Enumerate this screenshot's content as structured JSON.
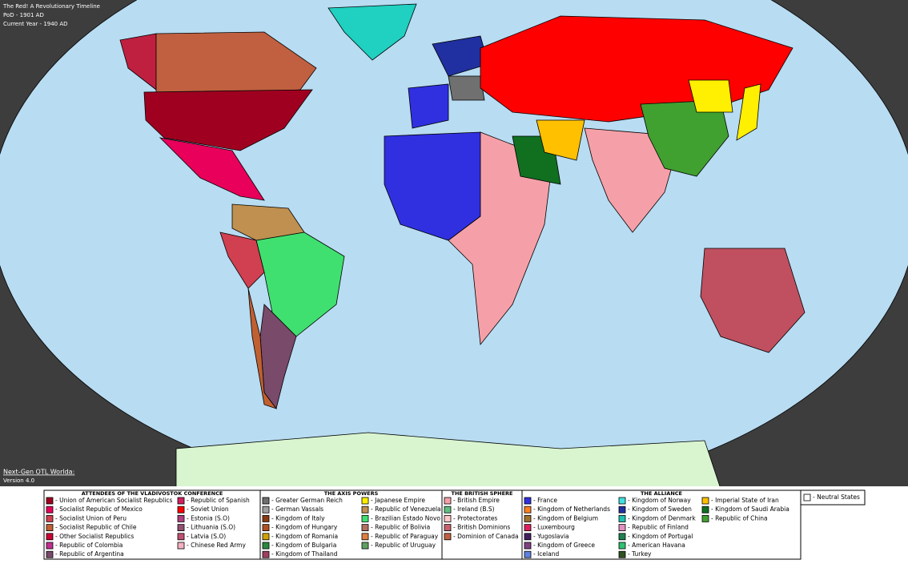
{
  "header": {
    "lines": [
      "The Red! A Revolutionary Timeline",
      "PoD - 1901 AD",
      "Current Year - 1940 AD"
    ]
  },
  "footer": {
    "title": "Next-Gen OTL Worlda:",
    "version": "Version 4.0"
  },
  "legend": {
    "groups": [
      {
        "title": "ATTENDEES OF THE VLADIVOSTOK CONFERENCE",
        "columns": [
          [
            {
              "label": "- Union of American Socialist Republics",
              "color": "#a00020"
            },
            {
              "label": "- Socialist Republic of Mexico",
              "color": "#e8005a"
            },
            {
              "label": "- Socialist Union of Peru",
              "color": "#d04050"
            },
            {
              "label": "- Socialist Republic of Chile",
              "color": "#c06030"
            },
            {
              "label": "- Other Socialist Republics",
              "color": "#cc0033"
            },
            {
              "label": "- Republic of Colombia",
              "color": "#c03090"
            },
            {
              "label": "- Republic of Argentina",
              "color": "#7a4a6a"
            }
          ],
          [
            {
              "label": "- Republic of Spanish",
              "color": "#d02060"
            },
            {
              "label": "- Soviet Union",
              "color": "#ff0000"
            },
            {
              "label": "- Estonia (S.O)",
              "color": "#b04080"
            },
            {
              "label": "- Lithuania (S.O)",
              "color": "#905070"
            },
            {
              "label": "- Latvia (S.O)",
              "color": "#c05070"
            },
            {
              "label": "- Chinese Red Army",
              "color": "#f4b0c0"
            }
          ]
        ]
      },
      {
        "title": "THE AXIS POWERS",
        "columns": [
          [
            {
              "label": "- Greater German Reich",
              "color": "#707070"
            },
            {
              "label": "- German Vassals",
              "color": "#a0a0a0"
            },
            {
              "label": "- Kingdom of Italy",
              "color": "#8b3a10"
            },
            {
              "label": "- Kingdom of Hungary",
              "color": "#b05020"
            },
            {
              "label": "- Kingdom of Romania",
              "color": "#d0a000"
            },
            {
              "label": "- Kingdom of Bulgaria",
              "color": "#2a8a40"
            },
            {
              "label": "- Kingdom of Thailand",
              "color": "#a04060"
            }
          ],
          [
            {
              "label": "- Japanese Empire",
              "color": "#ffef00"
            },
            {
              "label": "- Republic of Venezuela",
              "color": "#c09050"
            },
            {
              "label": "- Brazilian Estado Novo",
              "color": "#40e070"
            },
            {
              "label": "- Republic of Bolivia",
              "color": "#b07060"
            },
            {
              "label": "- Republic of Paraguay",
              "color": "#e08040"
            },
            {
              "label": "- Republic of Uruguay",
              "color": "#60a060"
            }
          ]
        ]
      },
      {
        "title": "THE BRITISH SPHERE",
        "columns": [
          [
            {
              "label": "- British Empire",
              "color": "#f5a0a8"
            },
            {
              "label": "- Ireland (B.S)",
              "color": "#60c080"
            },
            {
              "label": "- Protectorates",
              "color": "#ffc8c8"
            },
            {
              "label": "- British Dominions",
              "color": "#c86070"
            },
            {
              "label": "- Dominion of Canada",
              "color": "#c06040"
            }
          ]
        ]
      },
      {
        "title": "THE ALLIANCE",
        "columns": [
          [
            {
              "label": "- France",
              "color": "#3030e0"
            },
            {
              "label": "- Kingdom of Netherlands",
              "color": "#ff8020"
            },
            {
              "label": "- Kingdom of Belgium",
              "color": "#a07030"
            },
            {
              "label": "- Luxembourg",
              "color": "#e02060"
            },
            {
              "label": "- Yugoslavia",
              "color": "#402060"
            },
            {
              "label": "- Kingdom of Greece",
              "color": "#804080"
            },
            {
              "label": "- Iceland",
              "color": "#6080e0"
            }
          ],
          [
            {
              "label": "- Kingdom of Norway",
              "color": "#40e0e0"
            },
            {
              "label": "- Kingdom of Sweden",
              "color": "#2030a0"
            },
            {
              "label": "- Kingdom of Denmark",
              "color": "#20c0b0"
            },
            {
              "label": "- Republic of Finland",
              "color": "#e090c0"
            },
            {
              "label": "- Kingdom of Portugal",
              "color": "#208050"
            },
            {
              "label": "- American Havana",
              "color": "#30c070"
            },
            {
              "label": "- Turkey",
              "color": "#305020"
            }
          ],
          [
            {
              "label": "- Imperial State of Iran",
              "color": "#ffc000"
            },
            {
              "label": "- Kingdom of Saudi Arabia",
              "color": "#107020"
            },
            {
              "label": "- Republic of China",
              "color": "#40a030"
            }
          ]
        ]
      }
    ],
    "neutral": {
      "label": "- Neutral States",
      "color": "#ffffff"
    }
  }
}
